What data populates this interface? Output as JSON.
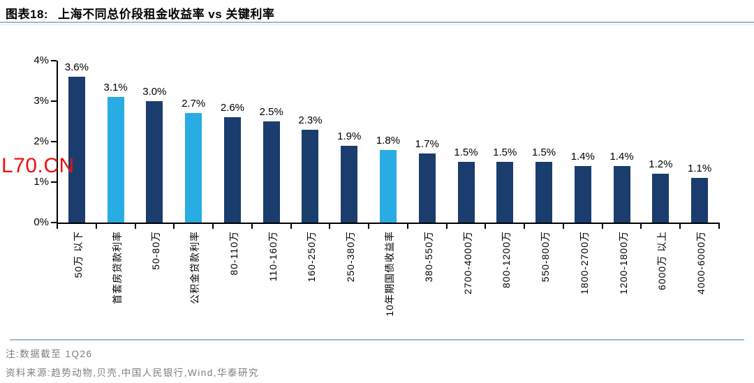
{
  "title": {
    "tag": "图表18:",
    "text": "上海不同总价段租金收益率 vs 关键利率"
  },
  "watermark": "L70.CN",
  "colors": {
    "bar_dark": "#1A3D6E",
    "bar_light": "#29ACE3",
    "axis_black": "#000000",
    "watermark_red": "#EE1111",
    "divider_blue": "#9DB9D4",
    "footer_gray": "#7F7F7F"
  },
  "chart_data": {
    "type": "bar",
    "title": "上海不同总价段租金收益率 vs 关键利率",
    "categories": [
      "50万 以下",
      "首套房贷款利率",
      "50-80万",
      "公积金贷款利率",
      "80-110万",
      "110-160万",
      "160-250万",
      "250-380万",
      "10年期国债收益率",
      "380-550万",
      "2700-4000万",
      "800-1200万",
      "550-800万",
      "1800-2700万",
      "1200-1800万",
      "6000万 以上",
      "4000-6000万"
    ],
    "values": [
      3.6,
      3.1,
      3.0,
      2.7,
      2.6,
      2.5,
      2.3,
      1.9,
      1.8,
      1.7,
      1.5,
      1.5,
      1.5,
      1.4,
      1.4,
      1.2,
      1.1
    ],
    "data_labels": [
      "3.6%",
      "3.1%",
      "3.0%",
      "2.7%",
      "2.6%",
      "2.5%",
      "2.3%",
      "1.9%",
      "1.8%",
      "1.7%",
      "1.5%",
      "1.5%",
      "1.5%",
      "1.4%",
      "1.4%",
      "1.2%",
      "1.1%"
    ],
    "highlight_indices": [
      1,
      3,
      8
    ],
    "highlight_meaning": "关键利率 (key interest rates) shown in light blue; 租金收益率 price segments in dark navy",
    "xlabel": "",
    "ylabel": "",
    "ylim": [
      0,
      4
    ],
    "yticks": [
      "0%",
      "1%",
      "2%",
      "3%",
      "4%"
    ],
    "grid": false,
    "legend": null
  },
  "footer": {
    "note": "注:数据截至 1Q26",
    "source": "资料来源:趋势动物,贝壳,中国人民银行,Wind,华泰研究"
  }
}
